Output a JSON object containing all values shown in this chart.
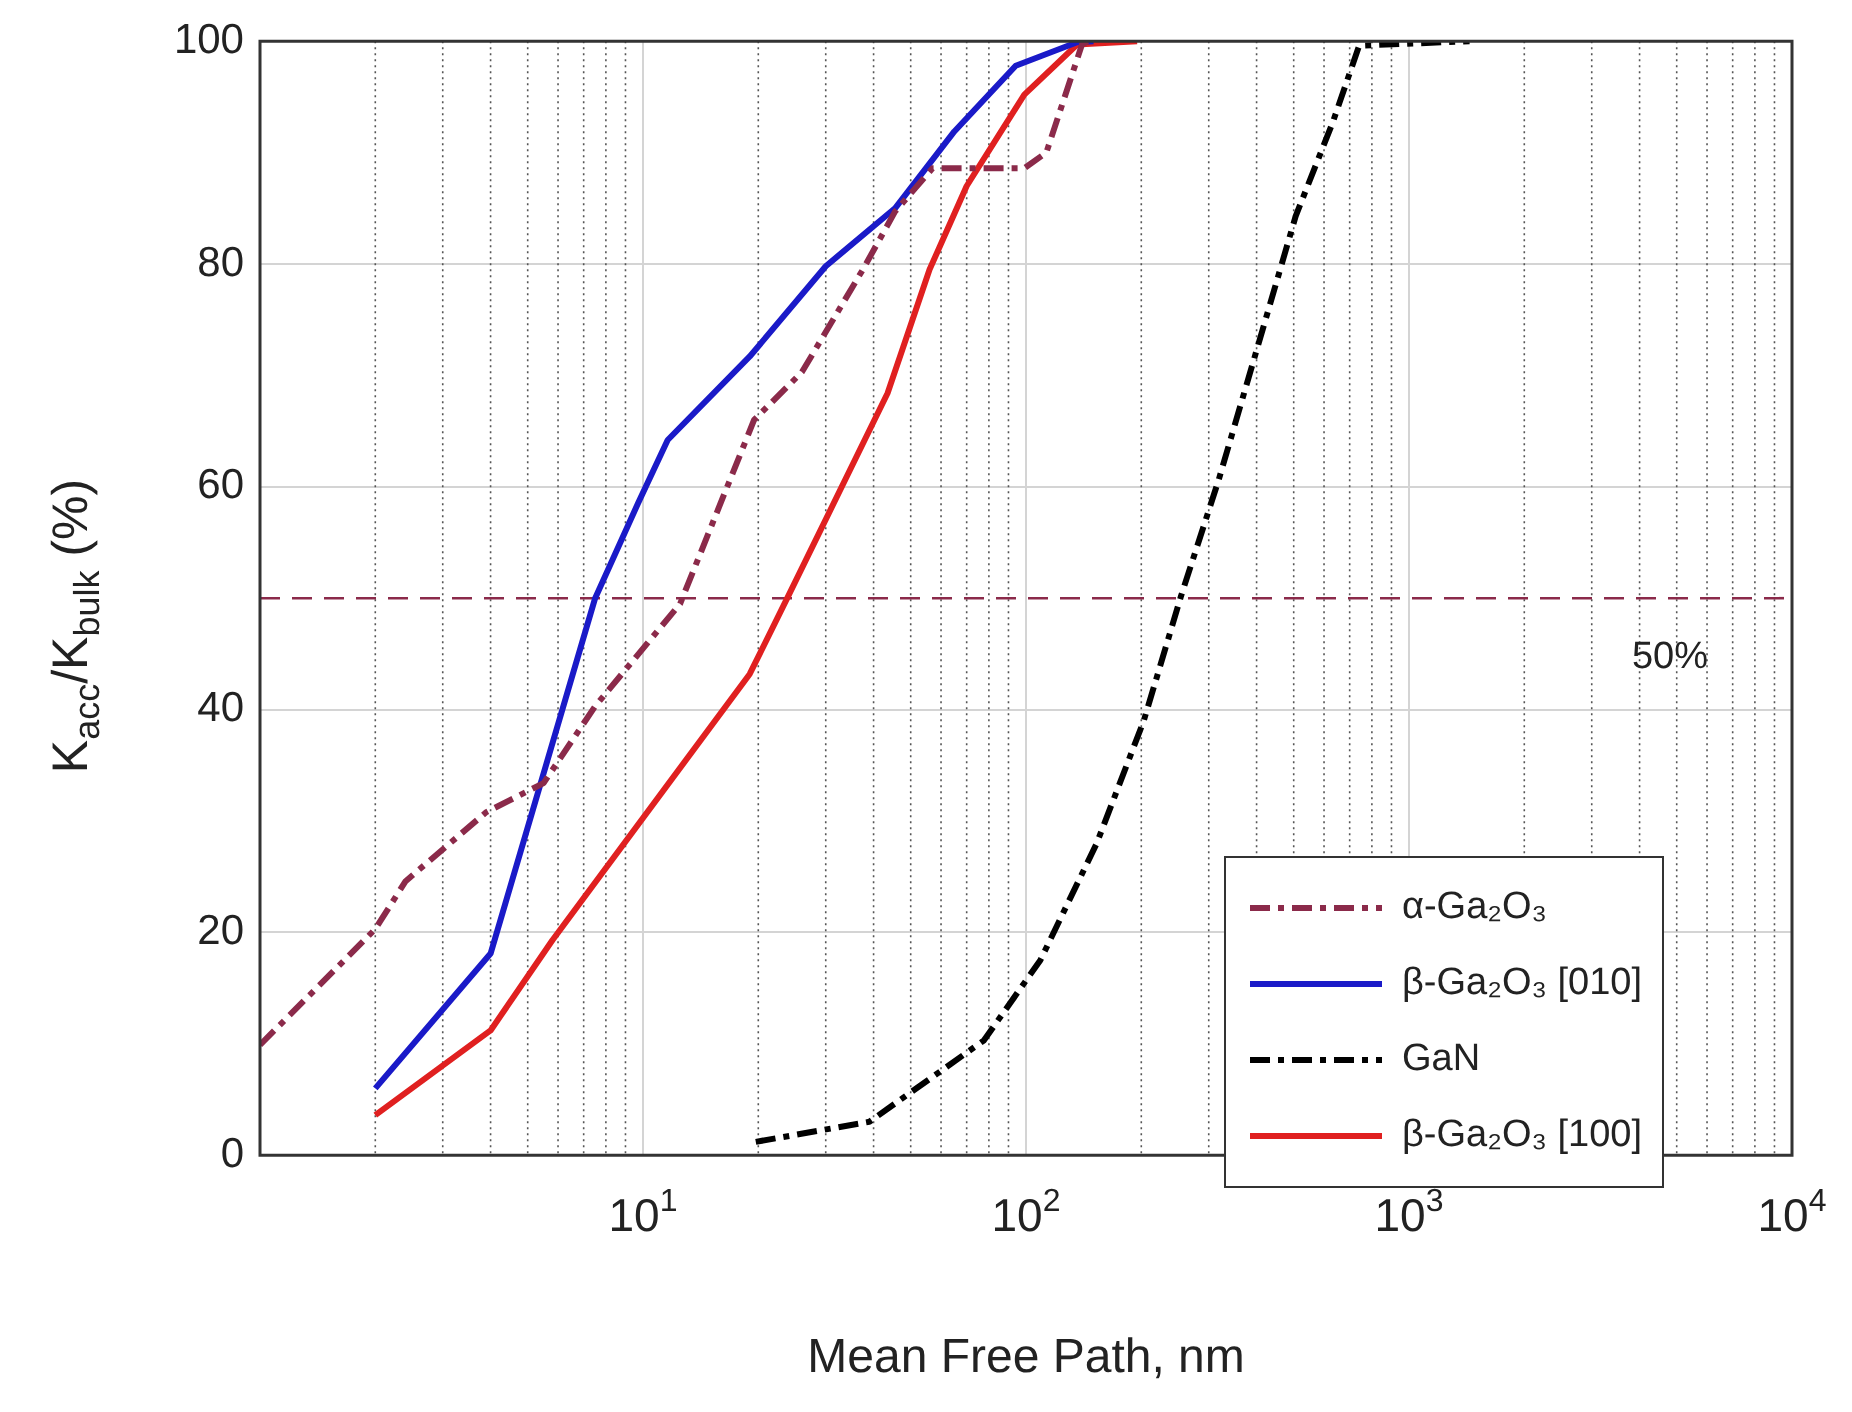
{
  "chart_data": {
    "type": "line",
    "xlabel": "Mean Free Path, nm",
    "ylabel": "K$_{acc}$/K$_{bulk}$ (%)",
    "log": "x",
    "grid": true,
    "legend": "bottom right",
    "marker": "none",
    "xlim": [
      1,
      10000
    ],
    "xticks": [
      {
        "value": 1,
        "label": null
      },
      {
        "value": 10,
        "label": "10$^{1}$"
      },
      {
        "value": 100,
        "label": "10$^{2}$"
      },
      {
        "value": 1000,
        "label": "10$^{3}$"
      },
      {
        "value": 10000,
        "label": "10$^{4}$"
      }
    ],
    "ylim": [
      0,
      100
    ],
    "yticks": [
      0,
      20,
      40,
      60,
      80,
      100
    ],
    "ref_lines": [
      {
        "axis": "y",
        "value": 50,
        "label": "50%",
        "color": "#8b2a4a",
        "line_style": "dashed"
      }
    ],
    "series": [
      {
        "name": "α-Ga₂O₃",
        "color": "#8b2a4a",
        "line_style": "dashdot",
        "x": [
          1,
          2,
          2.4,
          3.9,
          5.5,
          7.5,
          12.5,
          19.5,
          26,
          37.5,
          45.5,
          57,
          99,
          113,
          140,
          145
        ],
        "values": [
          9.9,
          20.3,
          24.6,
          30.8,
          33.4,
          40.3,
          49.5,
          66,
          70.3,
          79.5,
          84.7,
          88.6,
          88.6,
          90,
          99.7,
          100
        ]
      },
      {
        "name": "β-Ga₂O₃ [010]",
        "color": "#1a1ac8",
        "line_style": "solid",
        "x": [
          2,
          4,
          7.5,
          9.7,
          11.6,
          19,
          30,
          45.5,
          65,
          94,
          136,
          150
        ],
        "values": [
          6,
          18.1,
          50,
          58.5,
          64.2,
          71.7,
          79.8,
          85,
          91.9,
          97.8,
          99.9,
          100
        ]
      },
      {
        "name": "GaN",
        "color": "#000000",
        "line_style": "dashdot",
        "x": [
          19.7,
          39,
          77.6,
          109,
          153,
          203,
          254,
          319,
          402,
          506,
          632,
          741,
          1439
        ],
        "values": [
          1.2,
          3,
          10.3,
          17.5,
          28,
          39,
          50.2,
          60.7,
          72.5,
          84.3,
          92.7,
          99.6,
          100
        ]
      },
      {
        "name": "β-Ga₂O₃ [100]",
        "color": "#e02020",
        "line_style": "solid",
        "x": [
          2,
          4,
          5.8,
          19,
          23.8,
          43.5,
          56,
          70,
          99,
          136,
          195
        ],
        "values": [
          3.6,
          11.2,
          19.3,
          43.2,
          50,
          68.4,
          79.5,
          87,
          95.2,
          99.7,
          100
        ]
      }
    ]
  }
}
